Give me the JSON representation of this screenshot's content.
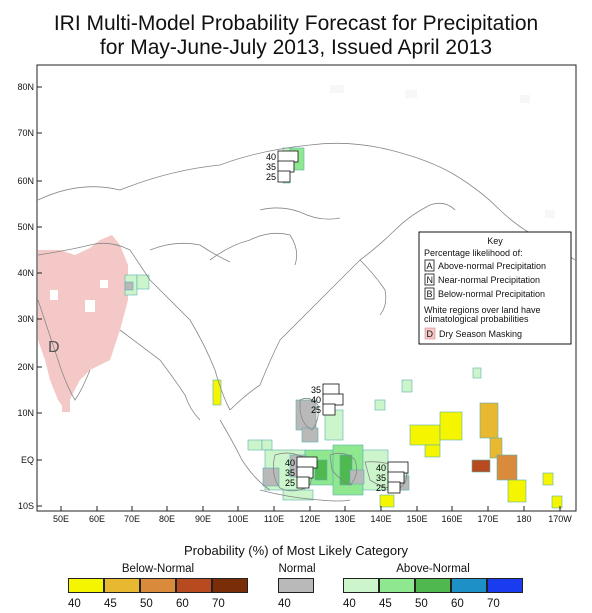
{
  "title": {
    "line1": "IRI Multi-Model Probability Forecast for Precipitation",
    "line2": "for May-June-July 2013, Issued April 2013"
  },
  "axes": {
    "lat_labels": [
      "80N",
      "70N",
      "60N",
      "50N",
      "40N",
      "30N",
      "20N",
      "10N",
      "EQ",
      "10S"
    ],
    "lon_labels": [
      "50E",
      "60E",
      "70E",
      "80E",
      "90E",
      "100E",
      "110E",
      "120E",
      "130E",
      "140E",
      "150E",
      "160E",
      "170E",
      "180",
      "170W"
    ]
  },
  "key": {
    "heading": "Key",
    "subtitle": "Percentage likelihood of:",
    "rows": [
      {
        "letter": "A",
        "text": "Above-normal Precipitation"
      },
      {
        "letter": "N",
        "text": "Near-normal Precipitation"
      },
      {
        "letter": "B",
        "text": "Below-normal Precipitation"
      }
    ],
    "note_line1": "White regions over land have",
    "note_line2": "climatological probabilities",
    "dry": {
      "letter": "D",
      "text": "Dry Season Masking"
    }
  },
  "map_annotations": {
    "dry_letter": "D",
    "stacks": [
      {
        "name": "siberia",
        "values": [
          "40",
          "35",
          "25"
        ]
      },
      {
        "name": "philippines",
        "values": [
          "35",
          "40",
          "25"
        ]
      },
      {
        "name": "borneo",
        "values": [
          "40",
          "35",
          "25"
        ]
      },
      {
        "name": "new-guinea",
        "values": [
          "40",
          "35",
          "25"
        ]
      }
    ]
  },
  "legend": {
    "title": "Probability (%) of Most Likely Category",
    "below_normal": {
      "label": "Below-Normal",
      "ticks": [
        "40",
        "45",
        "50",
        "60",
        "70"
      ],
      "colors": [
        "#f5f500",
        "#e8b830",
        "#d98a3a",
        "#b84a20",
        "#7a2e08"
      ]
    },
    "normal": {
      "label": "Normal",
      "ticks": [
        "40"
      ],
      "colors": [
        "#b9b9b9"
      ]
    },
    "above_normal": {
      "label": "Above-Normal",
      "ticks": [
        "40",
        "45",
        "50",
        "60",
        "70"
      ],
      "colors": [
        "#ccf5cc",
        "#8fe88f",
        "#4fb84f",
        "#1e90c8",
        "#1a3cf0"
      ]
    }
  },
  "colors": {
    "dry_mask": "#f5c8c8",
    "above_40": "#ccf5cc",
    "above_45": "#8fe88f",
    "above_50": "#4fb84f",
    "normal_40": "#b9b9b9",
    "below_40": "#f5f500",
    "below_45": "#e8b830",
    "below_60": "#b84a20"
  }
}
